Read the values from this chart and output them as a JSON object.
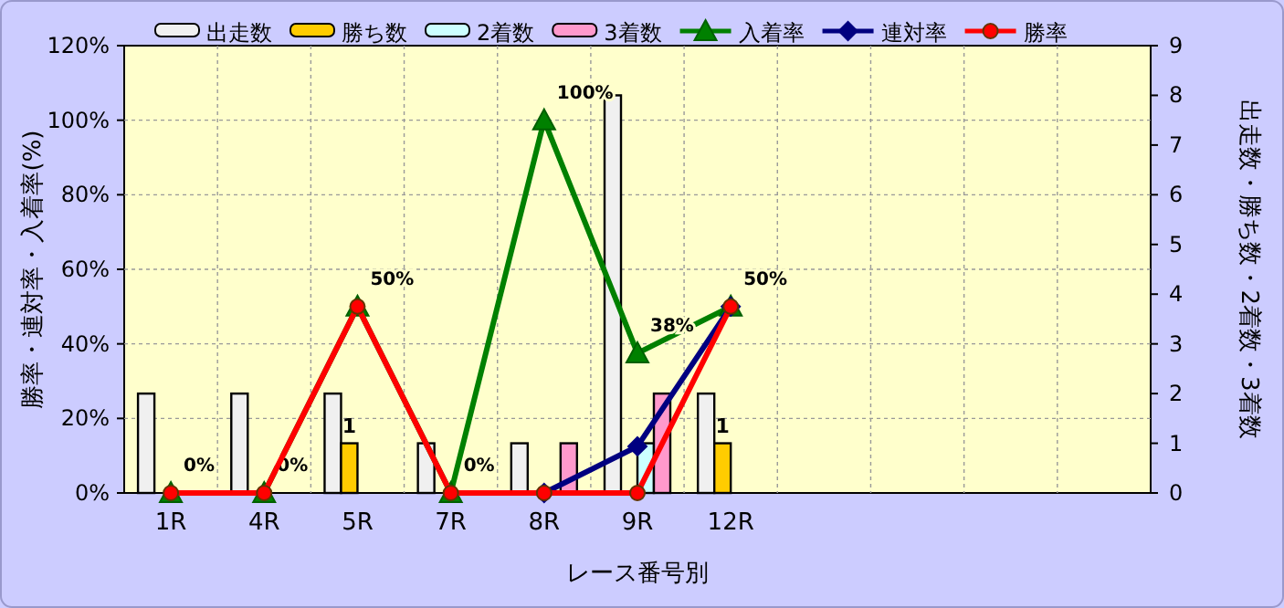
{
  "chart_data": {
    "type": "bar",
    "xlabel": "レース番号別",
    "ylabel": "勝率・連対率・入着率(%)",
    "y2label": "出走数・勝ち数・2着数・3着数",
    "categories": [
      "1R",
      "4R",
      "5R",
      "7R",
      "8R",
      "9R",
      "12R",
      null,
      null,
      null,
      null
    ],
    "ylim": [
      0,
      120
    ],
    "yticks": [
      {
        "value": 0,
        "label": "0%"
      },
      {
        "value": 20,
        "label": "20%"
      },
      {
        "value": 40,
        "label": "40%"
      },
      {
        "value": 60,
        "label": "60%"
      },
      {
        "value": 80,
        "label": "80%"
      },
      {
        "value": 100,
        "label": "100%"
      },
      {
        "value": 120,
        "label": "120%"
      }
    ],
    "y2lim": [
      0,
      9
    ],
    "y2ticks": [
      0,
      1,
      2,
      3,
      4,
      5,
      6,
      7,
      8,
      9
    ],
    "grid": true,
    "legend": "top",
    "series": [
      {
        "name": "出走数",
        "axis": "y2",
        "color": "#f0f0f0",
        "values": [
          2,
          2,
          2,
          1,
          1,
          8,
          2,
          null,
          null,
          null,
          null
        ]
      },
      {
        "name": "勝ち数",
        "axis": "y2",
        "color": "#ffcc00",
        "values": [
          0,
          0,
          1,
          0,
          0,
          0,
          1,
          null,
          null,
          null,
          null
        ],
        "value_labels": [
          null,
          null,
          "1",
          null,
          null,
          null,
          "1",
          null,
          null,
          null,
          null
        ]
      },
      {
        "name": "2着数",
        "axis": "y2",
        "color": "#ccffff",
        "values": [
          0,
          0,
          0,
          0,
          0,
          1,
          0,
          null,
          null,
          null,
          null
        ]
      },
      {
        "name": "3着数",
        "axis": "y2",
        "color": "#ff99cc",
        "values": [
          0,
          0,
          0,
          0,
          1,
          2,
          0,
          null,
          null,
          null,
          null
        ]
      },
      {
        "name": "入着率",
        "type": "line",
        "color": "#008000",
        "marker": "triangle",
        "values": [
          0,
          0,
          50,
          0,
          100,
          37.5,
          50,
          null,
          null,
          null,
          null
        ],
        "value_labels": [
          "0%",
          "0%",
          "50%",
          "0%",
          "100%",
          "38%",
          "50%",
          null,
          null,
          null,
          null
        ]
      },
      {
        "name": "連対率",
        "type": "line",
        "color": "#000080",
        "marker": "diamond",
        "values": [
          null,
          null,
          null,
          null,
          0,
          12.5,
          50,
          null,
          null,
          null,
          null
        ]
      },
      {
        "name": "勝率",
        "type": "line",
        "color": "#ff0000",
        "marker": "circle",
        "values": [
          0,
          0,
          50,
          0,
          0,
          0,
          50,
          null,
          null,
          null,
          null
        ]
      }
    ]
  }
}
